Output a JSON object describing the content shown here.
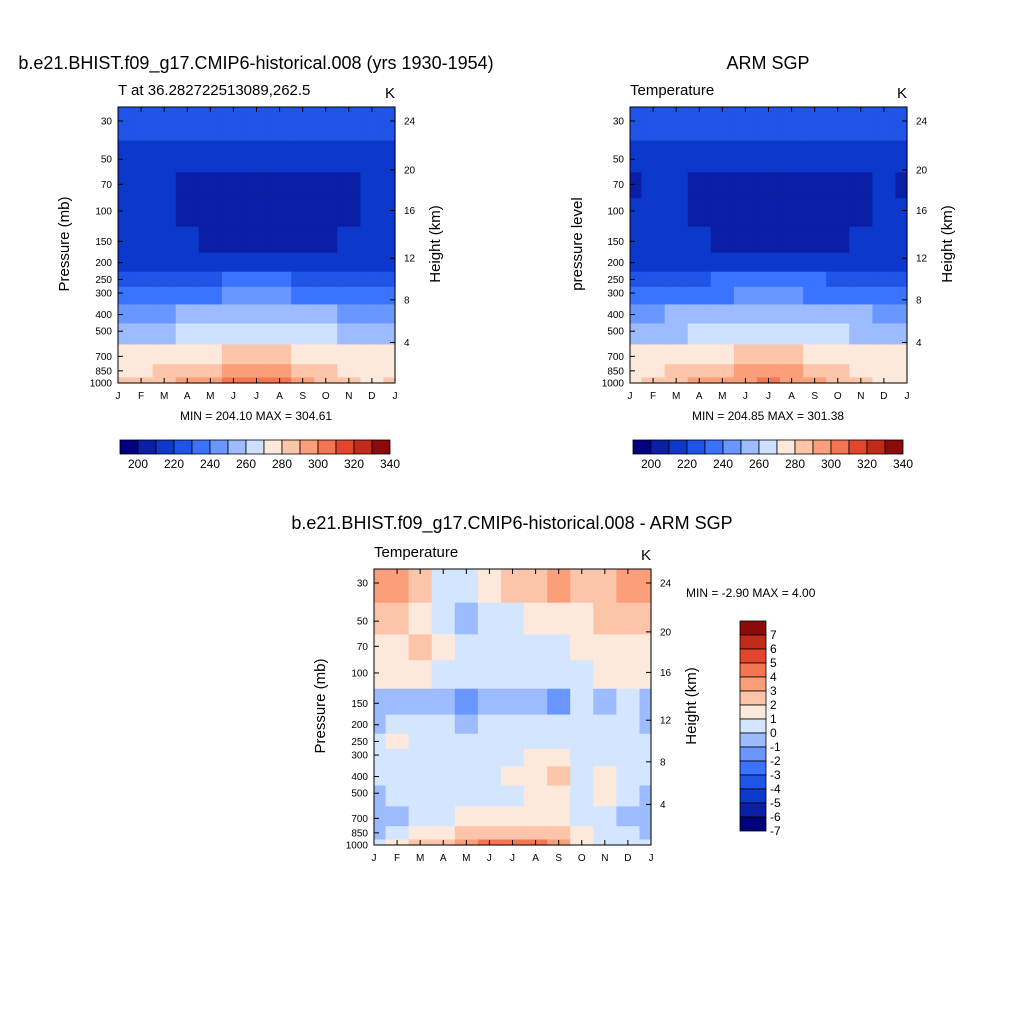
{
  "chart_data": [
    {
      "type": "heatmap",
      "id": "model",
      "title": "b.e21.BHIST.f09_g17.CMIP6-historical.008 (yrs 1930-1954)",
      "subtitle_left": "T at 36.282722513089,262.5",
      "subtitle_right": "K",
      "ylabel": "Pressure (mb)",
      "ylabel_right": "Height (km)",
      "x_ticks": [
        "J",
        "F",
        "M",
        "A",
        "M",
        "J",
        "J",
        "A",
        "S",
        "O",
        "N",
        "D",
        "J"
      ],
      "y_ticks": [
        "30",
        "50",
        "70",
        "100",
        "150",
        "200",
        "250",
        "300",
        "400",
        "500",
        "700",
        "850",
        "1000"
      ],
      "y2_ticks": [
        "24",
        "20",
        "16",
        "12",
        "8",
        "4"
      ],
      "stats": "MIN = 204.10 MAX = 304.61",
      "y_levels": [
        1000,
        850,
        700,
        500,
        400,
        300,
        250,
        200,
        150,
        100,
        70,
        50,
        30
      ],
      "values": [
        [
          280,
          283,
          287,
          292,
          297,
          302,
          304,
          300,
          295,
          288,
          282,
          279,
          280
        ],
        [
          276,
          279,
          282,
          286,
          289,
          292,
          294,
          292,
          288,
          284,
          279,
          276,
          276
        ],
        [
          270,
          271,
          273,
          276,
          279,
          281,
          282,
          281,
          279,
          276,
          272,
          270,
          270
        ],
        [
          255,
          256,
          258,
          261,
          264,
          266,
          267,
          266,
          264,
          261,
          258,
          256,
          255
        ],
        [
          246,
          247,
          249,
          252,
          254,
          256,
          257,
          256,
          254,
          252,
          249,
          247,
          246
        ],
        [
          232,
          233,
          234,
          236,
          238,
          240,
          241,
          240,
          238,
          236,
          234,
          232,
          232
        ],
        [
          224,
          225,
          226,
          227,
          229,
          231,
          232,
          231,
          229,
          227,
          226,
          225,
          224
        ],
        [
          217,
          217,
          217,
          218,
          218,
          219,
          219,
          219,
          218,
          218,
          217,
          217,
          217
        ],
        [
          213,
          213,
          212,
          211,
          207,
          206,
          205,
          205,
          206,
          208,
          211,
          213,
          213
        ],
        [
          212,
          211,
          210,
          208,
          206,
          205,
          205,
          205,
          205,
          206,
          209,
          211,
          212
        ],
        [
          213,
          212,
          211,
          208,
          207,
          207,
          207,
          207,
          207,
          208,
          208,
          212,
          213
        ],
        [
          216,
          215,
          215,
          214,
          214,
          214,
          214,
          214,
          214,
          214,
          214,
          215,
          216
        ],
        [
          221,
          221,
          221,
          222,
          223,
          224,
          225,
          225,
          224,
          223,
          221,
          221,
          221
        ]
      ],
      "colorbar": {
        "labels": [
          "200",
          "220",
          "240",
          "260",
          "280",
          "300",
          "320",
          "340"
        ]
      }
    },
    {
      "type": "heatmap",
      "id": "obs",
      "title": "ARM SGP",
      "subtitle_left": "Temperature",
      "subtitle_right": "K",
      "ylabel": "pressure level",
      "ylabel_right": "Height (km)",
      "x_ticks": [
        "J",
        "F",
        "M",
        "A",
        "M",
        "J",
        "J",
        "A",
        "S",
        "O",
        "N",
        "D",
        "J"
      ],
      "y_ticks": [
        "30",
        "50",
        "70",
        "100",
        "150",
        "200",
        "250",
        "300",
        "400",
        "500",
        "700",
        "850",
        "1000"
      ],
      "y2_ticks": [
        "24",
        "20",
        "16",
        "12",
        "8",
        "4"
      ],
      "stats": "MIN = 204.85 MAX = 301.38",
      "y_levels": [
        1000,
        850,
        700,
        500,
        400,
        300,
        250,
        200,
        150,
        100,
        70,
        50,
        30
      ],
      "values": [
        [
          279,
          282,
          286,
          291,
          295,
          299,
          301,
          299,
          294,
          288,
          282,
          279,
          279
        ],
        [
          276,
          278,
          281,
          285,
          288,
          291,
          293,
          291,
          288,
          283,
          279,
          276,
          276
        ],
        [
          271,
          272,
          274,
          277,
          279,
          281,
          282,
          281,
          279,
          276,
          273,
          271,
          271
        ],
        [
          256,
          257,
          259,
          262,
          264,
          266,
          267,
          266,
          264,
          262,
          259,
          257,
          256
        ],
        [
          247,
          248,
          250,
          252,
          254,
          256,
          257,
          256,
          254,
          252,
          250,
          248,
          247
        ],
        [
          233,
          234,
          235,
          237,
          239,
          241,
          241,
          240,
          238,
          237,
          235,
          233,
          233
        ],
        [
          225,
          225,
          226,
          228,
          230,
          231,
          232,
          231,
          230,
          228,
          226,
          225,
          225
        ],
        [
          217,
          217,
          218,
          218,
          219,
          219,
          219,
          219,
          219,
          218,
          218,
          217,
          217
        ],
        [
          213,
          213,
          212,
          211,
          208,
          206,
          205,
          205,
          206,
          208,
          211,
          213,
          213
        ],
        [
          211,
          211,
          210,
          208,
          206,
          205,
          205,
          205,
          205,
          206,
          209,
          210,
          211
        ],
        [
          208,
          210,
          211,
          208,
          207,
          207,
          207,
          207,
          207,
          208,
          208,
          210,
          208
        ],
        [
          212,
          213,
          214,
          214,
          214,
          214,
          214,
          214,
          214,
          214,
          214,
          213,
          212
        ],
        [
          220,
          221,
          221,
          222,
          223,
          224,
          225,
          225,
          224,
          223,
          221,
          221,
          220
        ]
      ],
      "colorbar": {
        "labels": [
          "200",
          "220",
          "240",
          "260",
          "280",
          "300",
          "320",
          "340"
        ]
      }
    },
    {
      "type": "heatmap",
      "id": "diff",
      "title": "b.e21.BHIST.f09_g17.CMIP6-historical.008 - ARM SGP",
      "subtitle_left": "Temperature",
      "subtitle_right": "K",
      "ylabel": "Pressure (mb)",
      "ylabel_right": "Height (km)",
      "x_ticks": [
        "J",
        "F",
        "M",
        "A",
        "M",
        "J",
        "J",
        "A",
        "S",
        "O",
        "N",
        "D",
        "J"
      ],
      "y_ticks": [
        "30",
        "50",
        "70",
        "100",
        "150",
        "200",
        "250",
        "300",
        "400",
        "500",
        "700",
        "850",
        "1000"
      ],
      "y2_ticks": [
        "24",
        "20",
        "16",
        "12",
        "8",
        "4"
      ],
      "stats": "MIN =  -2.90 MAX =   4.00",
      "y_levels": [
        1000,
        850,
        700,
        500,
        400,
        300,
        250,
        200,
        150,
        100,
        70,
        50,
        30
      ],
      "values": [
        [
          -0.5,
          0.5,
          1.0,
          1.0,
          2.0,
          3.0,
          3.5,
          3.0,
          2.5,
          0.5,
          -0.5,
          -0.8,
          -0.5
        ],
        [
          -1.2,
          -0.5,
          0.2,
          0.8,
          1.5,
          1.5,
          1.5,
          1.5,
          1.0,
          0.2,
          -0.5,
          -1.0,
          -1.2
        ],
        [
          -1.5,
          -1.2,
          -0.8,
          -0.2,
          0.2,
          0.3,
          0.3,
          0.3,
          0.5,
          -0.3,
          -0.5,
          -1.5,
          -1.5
        ],
        [
          -1.2,
          -1.0,
          -0.8,
          -0.5,
          -0.2,
          -0.2,
          -0.2,
          0.2,
          0.5,
          -0.3,
          0.3,
          -0.8,
          -1.2
        ],
        [
          -1.0,
          -0.8,
          -0.6,
          -0.4,
          -0.2,
          -0.2,
          0.0,
          0.2,
          1.5,
          -0.2,
          0.5,
          -0.5,
          -1.0
        ],
        [
          -0.8,
          -0.6,
          -0.5,
          -0.4,
          -0.4,
          -0.3,
          -0.2,
          0.2,
          0.5,
          -0.3,
          -0.2,
          -0.5,
          -0.8
        ],
        [
          -0.8,
          0.5,
          -0.5,
          -0.6,
          -0.7,
          -0.5,
          -0.3,
          -0.3,
          -0.3,
          -0.4,
          -0.3,
          -0.4,
          -0.8
        ],
        [
          -1.2,
          -1.0,
          -0.8,
          -1.0,
          -1.3,
          -1.0,
          -1.0,
          -1.0,
          -0.8,
          -0.6,
          -0.6,
          -0.6,
          -1.2
        ],
        [
          -1.2,
          -1.5,
          -1.2,
          -1.8,
          -2.2,
          -1.5,
          -1.2,
          -1.2,
          -2.2,
          -0.8,
          -1.8,
          -1.0,
          -1.2
        ],
        [
          0.5,
          0.8,
          0.8,
          -0.2,
          -0.2,
          -0.3,
          -0.5,
          -0.5,
          -0.2,
          -0.3,
          0.5,
          0.5,
          0.5
        ],
        [
          0.8,
          0.6,
          1.2,
          0.5,
          -0.3,
          -0.5,
          -0.2,
          -0.2,
          -0.2,
          0.5,
          0.6,
          0.8,
          0.8
        ],
        [
          1.2,
          1.0,
          0.8,
          -0.5,
          -1.8,
          -1.0,
          -0.5,
          0.5,
          0.8,
          0.5,
          1.0,
          1.2,
          1.2
        ],
        [
          2.8,
          2.0,
          1.5,
          -0.5,
          -0.5,
          0.3,
          1.0,
          1.5,
          2.5,
          1.5,
          1.2,
          2.0,
          2.8
        ]
      ],
      "colorbar": {
        "labels": [
          "7",
          "6",
          "5",
          "4",
          "3",
          "2",
          "1",
          "0",
          "-1",
          "-2",
          "-3",
          "-4",
          "-5",
          "-6",
          "-7"
        ]
      }
    }
  ],
  "colors": {
    "temp_scale": [
      "#000080",
      "#0a1fa5",
      "#0d38cc",
      "#1f55e6",
      "#3a73ff",
      "#6a97ff",
      "#9dbbff",
      "#cde0ff",
      "#fde8dc",
      "#fcc4a8",
      "#fb9f7a",
      "#f47552",
      "#e4452c",
      "#c22b1a",
      "#8c0a0a"
    ],
    "diff_scale": [
      "#00007a",
      "#0a1fa5",
      "#0d38cc",
      "#1f55e6",
      "#3a73ff",
      "#6a97ff",
      "#9dbbff",
      "#d4e6ff",
      "#fde8dc",
      "#fcc4a8",
      "#fb9f7a",
      "#f47552",
      "#e4452c",
      "#c22b1a",
      "#8c0a0a"
    ]
  }
}
